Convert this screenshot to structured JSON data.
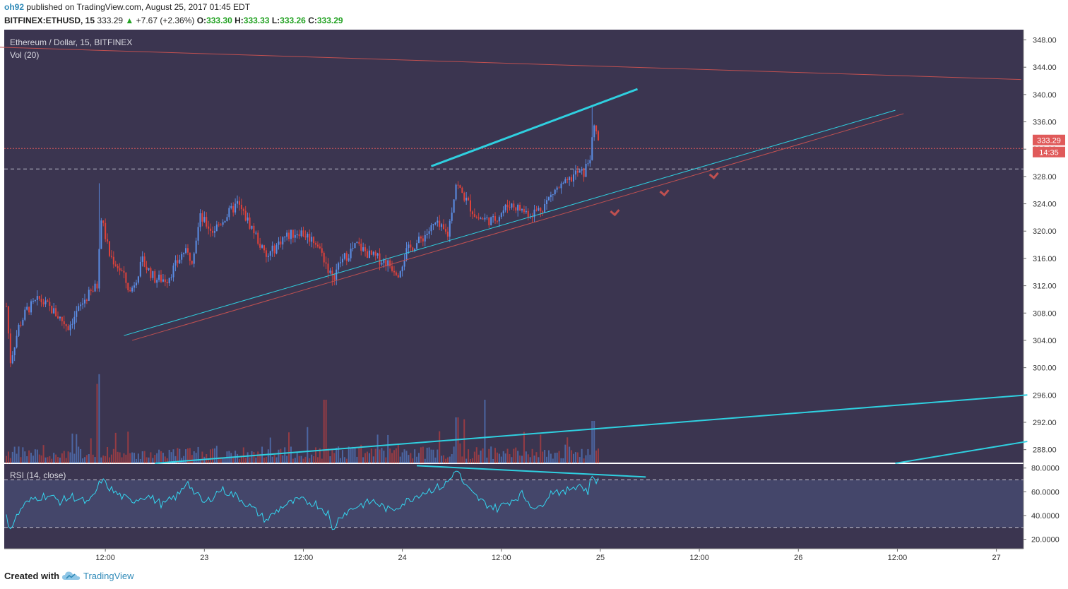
{
  "header": {
    "author": "oh92",
    "published_text": "published on TradingView.com, August 25, 2017 01:45 EDT",
    "symbol": "BITFINEX:ETHUSD, 15",
    "last": "333.29",
    "change_arrow": "▲",
    "change": "+7.67 (+2.36%)",
    "o_label": "O:",
    "o_value": "333.30",
    "h_label": "H:",
    "h_value": "333.33",
    "l_label": "L:",
    "l_value": "333.26",
    "c_label": "C:",
    "c_value": "333.29"
  },
  "legend": {
    "title": "Ethereum / Dollar, 15, BITFINEX",
    "volume": "Vol (20)",
    "rsi": "RSI (14, close)"
  },
  "price_badge": {
    "price": "333.29",
    "countdown": "14:35"
  },
  "footer": {
    "created_with": "Created with",
    "brand": "TradingView"
  },
  "colors": {
    "background": "#3b3550",
    "rsi_band": "#44466a",
    "up": "#5b8ee6",
    "down": "#e0423a",
    "trendline": "#2fd0e0",
    "resistance": "#c05050",
    "rsi_line": "#33d6f0",
    "price_badge": "#e05a5a"
  },
  "chart_data": [
    {
      "type": "candlestick",
      "title": "Ethereum / Dollar, 15, BITFINEX",
      "y_axis_ticks": [
        "348.00",
        "344.00",
        "340.00",
        "336.00",
        "332.00",
        "328.00",
        "324.00",
        "320.00",
        "316.00",
        "312.00",
        "308.00",
        "304.00",
        "300.00",
        "296.00",
        "292.00",
        "288.00"
      ],
      "ylim": [
        286,
        349.5
      ],
      "x_axis_ticks": [
        "12:00",
        "23",
        "12:00",
        "24",
        "12:00",
        "25",
        "12:00",
        "26",
        "12:00",
        "27"
      ],
      "x_tick_index": [
        48,
        96,
        144,
        192,
        240,
        288,
        336,
        384,
        432,
        480
      ],
      "bars": 288,
      "price_path_anchors": [
        [
          0,
          309
        ],
        [
          2,
          301
        ],
        [
          6,
          306
        ],
        [
          10,
          308.5
        ],
        [
          16,
          310
        ],
        [
          22,
          308.5
        ],
        [
          30,
          306
        ],
        [
          38,
          310
        ],
        [
          44,
          312
        ],
        [
          46,
          322
        ],
        [
          50,
          316.5
        ],
        [
          56,
          314
        ],
        [
          60,
          311
        ],
        [
          66,
          315.5
        ],
        [
          72,
          313
        ],
        [
          78,
          313
        ],
        [
          86,
          317
        ],
        [
          90,
          316
        ],
        [
          94,
          322
        ],
        [
          100,
          320
        ],
        [
          106,
          322
        ],
        [
          112,
          324
        ],
        [
          120,
          320
        ],
        [
          126,
          316
        ],
        [
          134,
          319
        ],
        [
          142,
          320
        ],
        [
          150,
          318.5
        ],
        [
          154,
          316
        ],
        [
          158,
          313
        ],
        [
          162,
          315.5
        ],
        [
          170,
          318
        ],
        [
          176,
          316.5
        ],
        [
          184,
          315.5
        ],
        [
          190,
          314
        ],
        [
          194,
          317
        ],
        [
          200,
          318.5
        ],
        [
          208,
          321
        ],
        [
          214,
          319.5
        ],
        [
          218,
          327
        ],
        [
          222,
          325
        ],
        [
          228,
          322
        ],
        [
          236,
          321.5
        ],
        [
          244,
          324
        ],
        [
          254,
          322.5
        ],
        [
          260,
          323.5
        ],
        [
          266,
          326
        ],
        [
          272,
          327
        ],
        [
          276,
          328.5
        ],
        [
          280,
          328.5
        ],
        [
          283,
          331
        ],
        [
          285,
          335
        ],
        [
          288,
          333.3
        ]
      ],
      "last": 333.29,
      "high_spike": 338.3,
      "horizontal_levels": [
        332.1,
        329.1
      ]
    },
    {
      "type": "bar",
      "title": "Vol (20)",
      "note": "volume histogram overlaid at the bottom of the price pane"
    },
    {
      "type": "line",
      "title": "RSI (14, close)",
      "y_axis_ticks": [
        "80.0000",
        "60.0000",
        "40.0000",
        "20.0000"
      ],
      "ylim": [
        12,
        84
      ],
      "bands": [
        70,
        30
      ],
      "rsi_anchors": [
        [
          0,
          38
        ],
        [
          2,
          30
        ],
        [
          8,
          48
        ],
        [
          14,
          55
        ],
        [
          20,
          57
        ],
        [
          26,
          52
        ],
        [
          32,
          56
        ],
        [
          40,
          50
        ],
        [
          44,
          62
        ],
        [
          46,
          70
        ],
        [
          52,
          60
        ],
        [
          60,
          52
        ],
        [
          68,
          57
        ],
        [
          76,
          49
        ],
        [
          84,
          58
        ],
        [
          88,
          70
        ],
        [
          90,
          62
        ],
        [
          96,
          50
        ],
        [
          104,
          62
        ],
        [
          112,
          56
        ],
        [
          120,
          45
        ],
        [
          126,
          36
        ],
        [
          134,
          48
        ],
        [
          142,
          53
        ],
        [
          150,
          50
        ],
        [
          156,
          42
        ],
        [
          158,
          27
        ],
        [
          162,
          40
        ],
        [
          170,
          48
        ],
        [
          178,
          52
        ],
        [
          186,
          44
        ],
        [
          194,
          52
        ],
        [
          200,
          58
        ],
        [
          206,
          62
        ],
        [
          212,
          65
        ],
        [
          216,
          72
        ],
        [
          218,
          80
        ],
        [
          222,
          66
        ],
        [
          226,
          58
        ],
        [
          232,
          50
        ],
        [
          238,
          46
        ],
        [
          244,
          52
        ],
        [
          250,
          58
        ],
        [
          254,
          50
        ],
        [
          258,
          45
        ],
        [
          262,
          56
        ],
        [
          266,
          62
        ],
        [
          270,
          58
        ],
        [
          274,
          64
        ],
        [
          278,
          66
        ],
        [
          282,
          60
        ],
        [
          284,
          74
        ],
        [
          286,
          70
        ],
        [
          288,
          68
        ]
      ]
    }
  ]
}
